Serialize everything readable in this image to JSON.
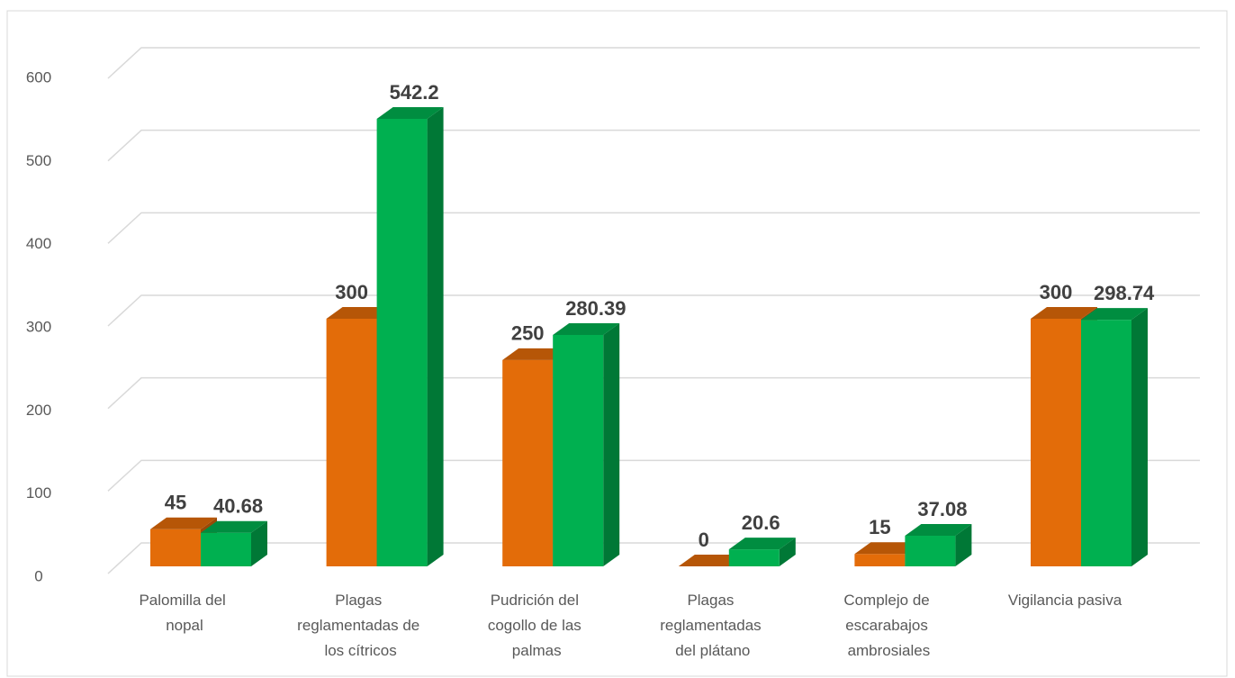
{
  "chart_data": {
    "type": "bar3d",
    "categories": [
      "Palomilla del nopal",
      "Plagas reglamentadas de los cítricos",
      "Pudrición del cogollo de las palmas",
      "Plagas reglamentadas del plátano",
      "Complejo de escarabajos ambrosiales",
      "Vigilancia pasiva"
    ],
    "series": [
      {
        "color": "#e36c09",
        "values": [
          45,
          300,
          250,
          0,
          15,
          300
        ]
      },
      {
        "color": "#00b050",
        "values": [
          40.68,
          542.2,
          280.39,
          20.6,
          37.08,
          298.74
        ]
      }
    ],
    "ylim": [
      0,
      600
    ],
    "yticks": [
      0,
      100,
      200,
      300,
      400,
      500,
      600
    ],
    "grid": true
  }
}
